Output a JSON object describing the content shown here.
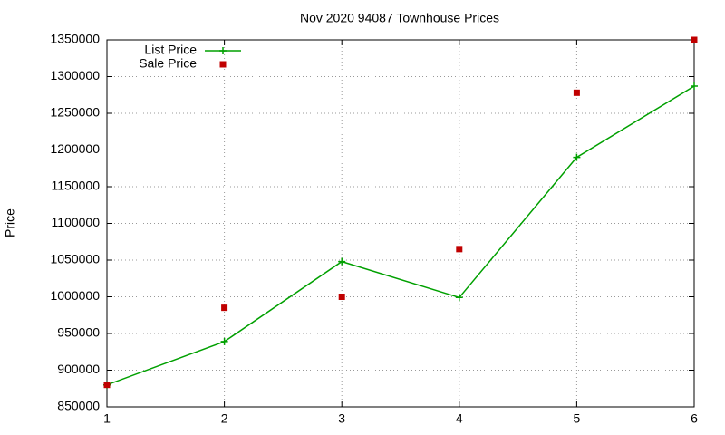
{
  "chart_data": {
    "type": "line",
    "title": "Nov 2020 94087 Townhouse Prices",
    "y_label": "Price",
    "x": [
      1,
      2,
      3,
      4,
      5,
      6
    ],
    "series": [
      {
        "name": "List Price",
        "color": "#00a000",
        "style": "linespoints",
        "values": [
          880000,
          939000,
          1048000,
          999000,
          1190000,
          1287000
        ]
      },
      {
        "name": "Sale Price",
        "color": "#c00000",
        "style": "points",
        "values": [
          880000,
          985000,
          1000000,
          1065000,
          1278000,
          1350000
        ]
      }
    ],
    "xlim": [
      1,
      6
    ],
    "xticks": [
      1,
      2,
      3,
      4,
      5,
      6
    ],
    "ylim": [
      850000,
      1350000
    ],
    "yticks": [
      850000,
      900000,
      950000,
      1000000,
      1050000,
      1100000,
      1150000,
      1200000,
      1250000,
      1300000,
      1350000
    ],
    "grid": true,
    "legend": "top-left"
  }
}
